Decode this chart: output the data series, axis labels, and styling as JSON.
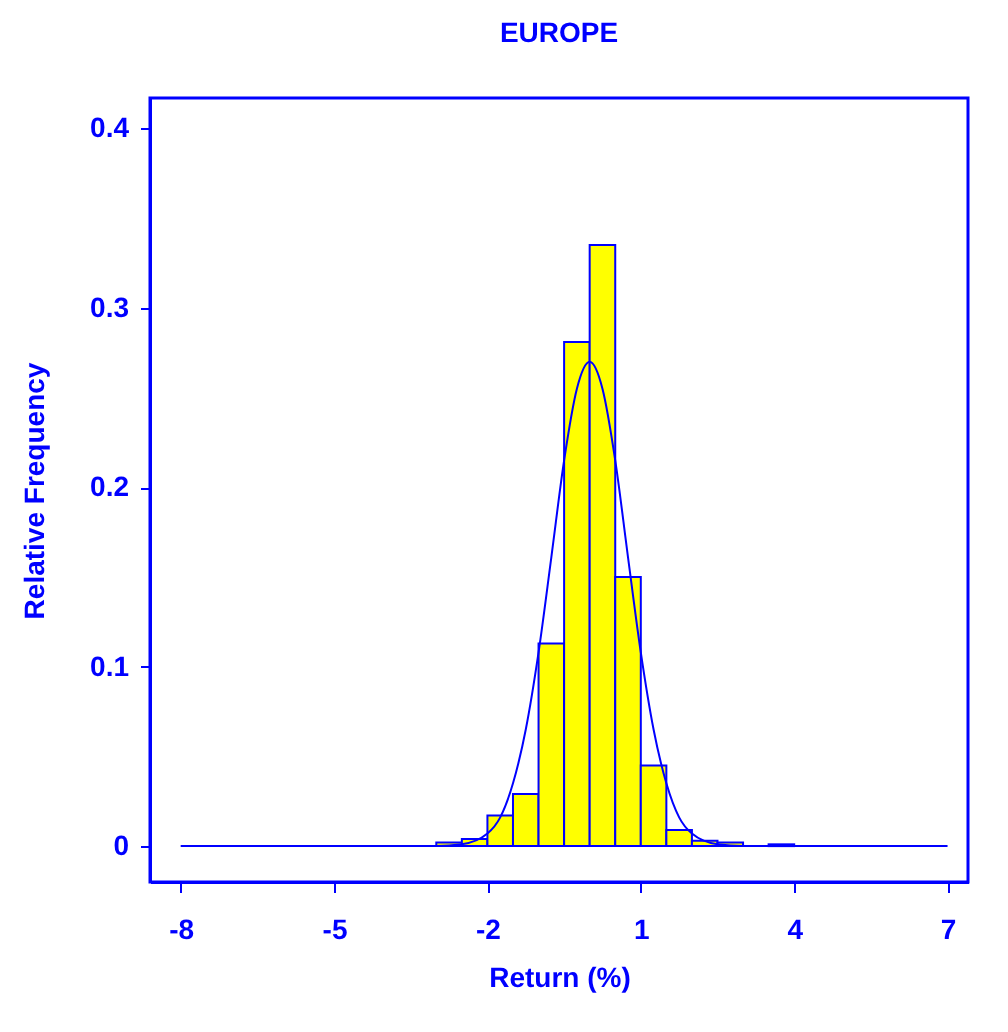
{
  "chart_data": {
    "type": "histogram",
    "title": "EUROPE",
    "xlabel": "Return (%)",
    "ylabel": "Relative Frequency",
    "xlim": [
      -8.6,
      7.4
    ],
    "xticks": [
      -8,
      -5,
      -2,
      1,
      4,
      7
    ],
    "ylim": [
      -0.02,
      0.417
    ],
    "yticks": [
      0,
      0.1,
      0.2,
      0.3,
      0.4
    ],
    "grid": false,
    "series": [
      {
        "color": "#ffff00",
        "bins": [
          -3,
          -2.5,
          -2,
          -1.5,
          -1,
          -0.5,
          0,
          0.5,
          1,
          1.5,
          2,
          2.5,
          3,
          3.5,
          4
        ],
        "values": [
          0.002,
          0.004,
          0.017,
          0.029,
          0.113,
          0.281,
          0.335,
          0.15,
          0.045,
          0.009,
          0.003,
          0.002,
          null,
          0.001
        ]
      },
      {
        "type": "line",
        "color": "#0000ff",
        "x": [
          -8,
          -4,
          -3,
          -2.5,
          -2,
          -1.75,
          -1.5,
          -1.25,
          -1,
          -0.75,
          -0.5,
          -0.25,
          0,
          0.25,
          0.5,
          0.75,
          1,
          1.25,
          1.5,
          1.75,
          2,
          2.5,
          3,
          4,
          7
        ],
        "values": [
          0,
          0,
          0,
          0.001,
          0.007,
          0.016,
          0.035,
          0.065,
          0.108,
          0.161,
          0.215,
          0.255,
          0.27,
          0.255,
          0.215,
          0.161,
          0.108,
          0.065,
          0.035,
          0.016,
          0.007,
          0.001,
          0,
          0,
          0
        ]
      }
    ]
  }
}
